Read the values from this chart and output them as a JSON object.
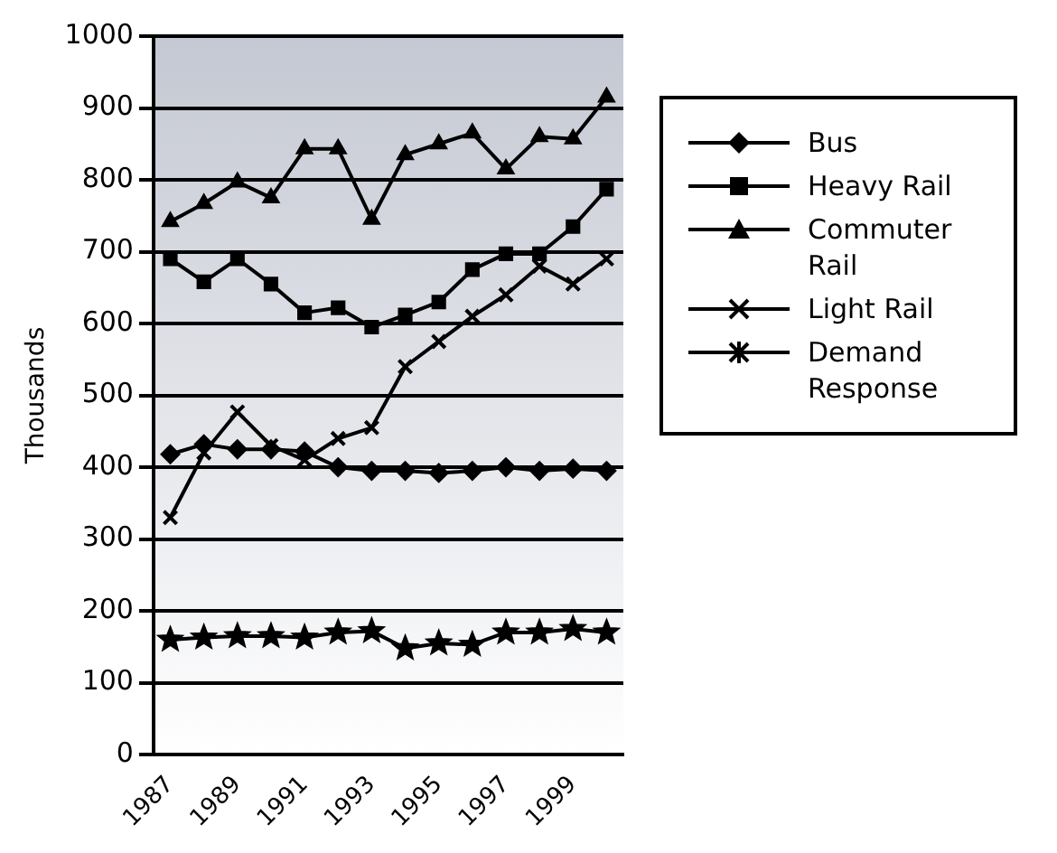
{
  "chart_data": {
    "type": "line",
    "ylabel": "Thousands",
    "categories": [
      "1987",
      null,
      "1989",
      null,
      "1991",
      null,
      "1993",
      null,
      "1995",
      null,
      "1997",
      null,
      "1999",
      null
    ],
    "ylim": [
      0,
      1000
    ],
    "yticks": [
      0,
      100,
      200,
      300,
      400,
      500,
      600,
      700,
      800,
      900,
      1000
    ],
    "grid": "y",
    "legend": "right",
    "line_style": "solid",
    "series": [
      {
        "name": "Bus",
        "color": "#000000",
        "marker": "diamond",
        "values": [
          418,
          432,
          425,
          425,
          422,
          400,
          395,
          395,
          392,
          395,
          400,
          395,
          398,
          395
        ]
      },
      {
        "name": "Heavy Rail",
        "color": "#000000",
        "marker": "square",
        "values": [
          690,
          658,
          690,
          655,
          615,
          622,
          595,
          612,
          630,
          675,
          697,
          697,
          735,
          787
        ]
      },
      {
        "name": "Commuter Rail",
        "color": "#000000",
        "marker": "triangle",
        "values": [
          742,
          767,
          797,
          775,
          843,
          843,
          745,
          835,
          850,
          865,
          815,
          860,
          857,
          915
        ]
      },
      {
        "name": "Light Rail",
        "color": "#000000",
        "marker": "cross",
        "values": [
          330,
          420,
          477,
          430,
          410,
          440,
          455,
          540,
          575,
          610,
          640,
          680,
          655,
          690
        ]
      },
      {
        "name": "Demand Response",
        "color": "#000000",
        "marker": "star",
        "values": [
          160,
          163,
          165,
          165,
          163,
          170,
          172,
          148,
          155,
          153,
          170,
          170,
          175,
          170
        ]
      }
    ]
  }
}
